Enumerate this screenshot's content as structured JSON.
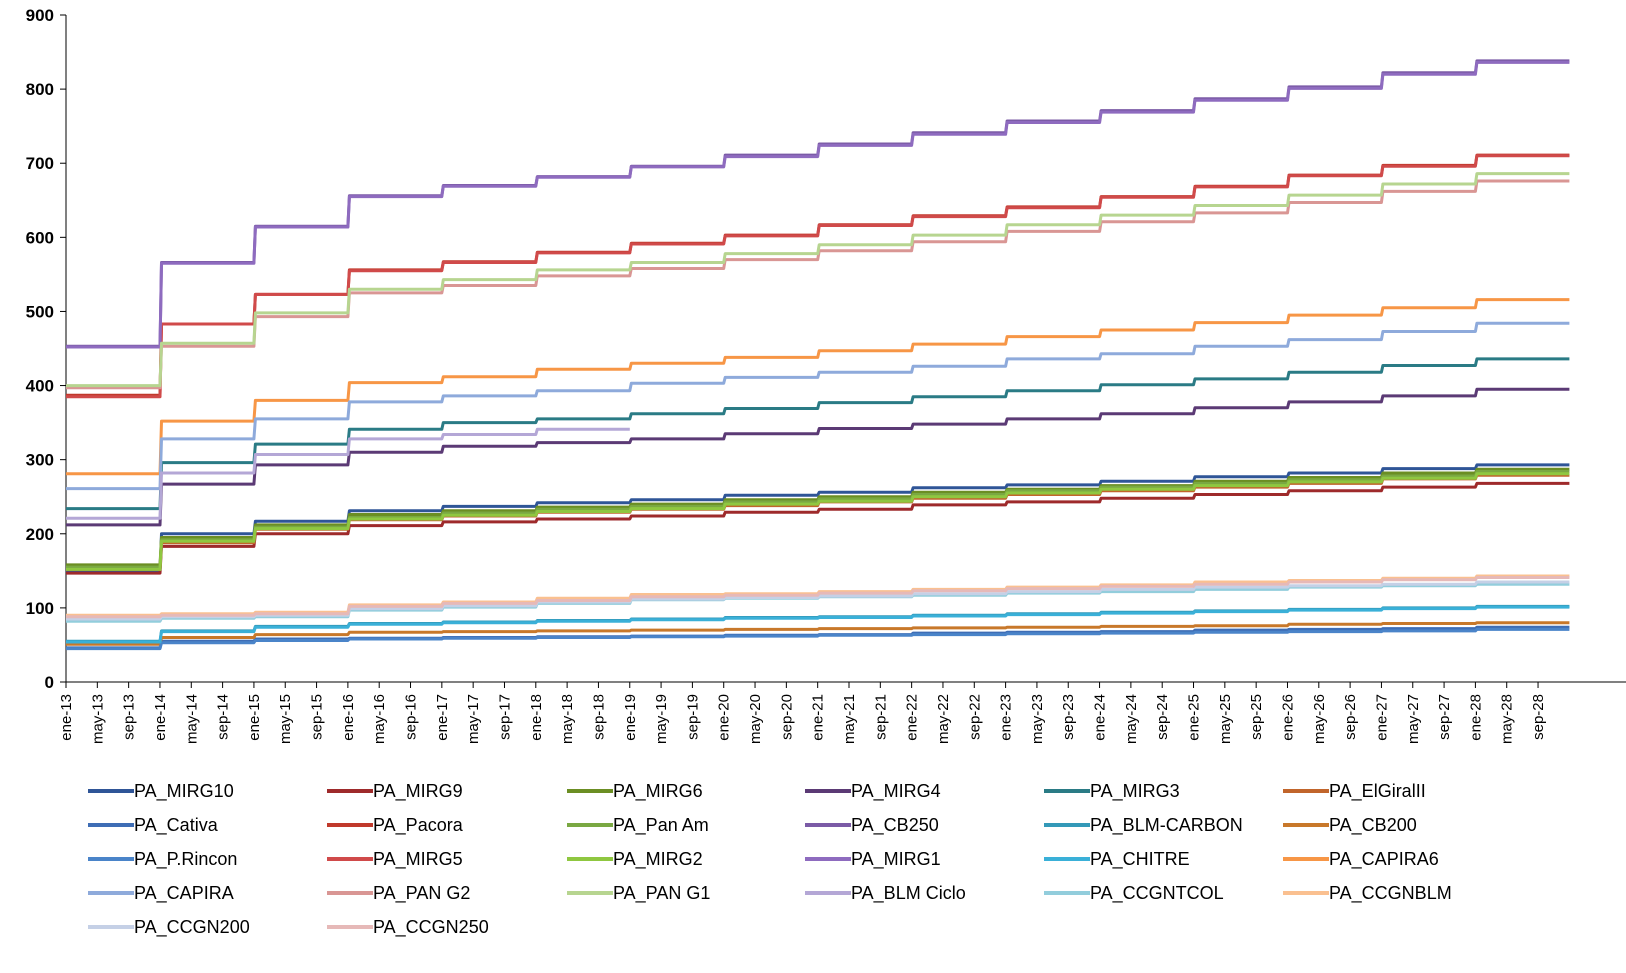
{
  "chart_data": {
    "type": "line",
    "title": "",
    "xlabel": "",
    "ylabel": "",
    "ylim": [
      0,
      900
    ],
    "yticks": [
      0,
      100,
      200,
      300,
      400,
      500,
      600,
      700,
      800,
      900
    ],
    "x_tick_labels": [
      "ene-13",
      "may-13",
      "sep-13",
      "ene-14",
      "may-14",
      "sep-14",
      "ene-15",
      "may-15",
      "sep-15",
      "ene-16",
      "may-16",
      "sep-16",
      "ene-17",
      "may-17",
      "sep-17",
      "ene-18",
      "may-18",
      "sep-18",
      "ene-19",
      "may-19",
      "sep-19",
      "ene-20",
      "may-20",
      "sep-20",
      "ene-21",
      "may-21",
      "sep-21",
      "ene-22",
      "may-22",
      "sep-22",
      "ene-23",
      "may-23",
      "sep-23",
      "ene-24",
      "may-24",
      "sep-24",
      "ene-25",
      "may-25",
      "sep-25",
      "ene-26",
      "may-26",
      "sep-26",
      "ene-27",
      "may-27",
      "sep-27",
      "ene-28",
      "may-28",
      "sep-28"
    ],
    "x_step": "monthly, ticks every 4 months",
    "years": [
      2013,
      2014,
      2015,
      2016,
      2017,
      2018,
      2019,
      2020,
      2021,
      2022,
      2023,
      2024,
      2025,
      2026,
      2027,
      2028
    ],
    "grid": false,
    "legend_position": "bottom",
    "series": [
      {
        "name": "PA_MIRG10",
        "color": "#2f5597",
        "values": [
          149,
          200,
          217,
          231,
          237,
          242,
          246,
          252,
          256,
          262,
          266,
          271,
          277,
          282,
          288,
          293
        ]
      },
      {
        "name": "PA_MIRG9",
        "color": "#9e2a2b",
        "values": [
          147,
          183,
          200,
          211,
          216,
          220,
          224,
          229,
          233,
          239,
          243,
          248,
          253,
          258,
          263,
          268
        ]
      },
      {
        "name": "PA_MIRG6",
        "color": "#6b8e23",
        "values": [
          158,
          195,
          212,
          226,
          231,
          236,
          240,
          246,
          250,
          256,
          260,
          265,
          271,
          276,
          282,
          287
        ]
      },
      {
        "name": "PA_MIRG4",
        "color": "#5b3a75",
        "values": [
          212,
          267,
          293,
          310,
          318,
          323,
          328,
          335,
          342,
          348,
          355,
          362,
          370,
          378,
          386,
          395
        ]
      },
      {
        "name": "PA_MIRG3",
        "color": "#2a7b85",
        "values": [
          234,
          296,
          321,
          341,
          350,
          355,
          362,
          369,
          377,
          385,
          393,
          401,
          409,
          418,
          427,
          436
        ]
      },
      {
        "name": "PA_ElGiralII",
        "color": "#c1652b",
        "values": [
          152,
          188,
          206,
          219,
          224,
          229,
          233,
          238,
          243,
          248,
          253,
          258,
          263,
          268,
          274,
          279
        ]
      },
      {
        "name": "PA_Cativa",
        "color": "#3e6db5",
        "values": [
          46,
          55,
          58,
          59,
          60,
          61,
          62,
          63,
          64,
          66,
          67,
          68,
          70,
          71,
          72,
          74
        ]
      },
      {
        "name": "PA_Pacora",
        "color": "#c0392b",
        "values": [
          387,
          483,
          523,
          556,
          567,
          580,
          592,
          603,
          617,
          629,
          641,
          655,
          669,
          684,
          697,
          711
        ]
      },
      {
        "name": "PA_Pan Am",
        "color": "#7aa842",
        "values": [
          155,
          192,
          209,
          222,
          228,
          233,
          237,
          243,
          247,
          253,
          258,
          263,
          268,
          273,
          278,
          284
        ]
      },
      {
        "name": "PA_CB250",
        "color": "#7b5ba6",
        "values": [
          453,
          566,
          615,
          656,
          670,
          682,
          696,
          711,
          726,
          741,
          757,
          771,
          787,
          803,
          822,
          838
        ]
      },
      {
        "name": "PA_BLM-CARBON",
        "color": "#3399b8",
        "values": [
          55,
          69,
          75,
          79,
          81,
          83,
          85,
          87,
          88,
          90,
          92,
          94,
          96,
          98,
          100,
          102
        ]
      },
      {
        "name": "PA_CB200",
        "color": "#c8782a",
        "values": [
          51,
          60,
          64,
          67,
          68,
          69,
          70,
          71,
          72,
          73,
          74,
          75,
          76,
          78,
          79,
          80
        ]
      },
      {
        "name": "PA_P.Rincon",
        "color": "#4a84c9",
        "values": [
          45,
          53,
          56,
          58,
          59,
          60,
          61,
          62,
          63,
          64,
          65,
          66,
          67,
          68,
          69,
          71
        ]
      },
      {
        "name": "PA_MIRG5",
        "color": "#d04a4a",
        "values": [
          385,
          483,
          523,
          555,
          566,
          579,
          591,
          602,
          616,
          628,
          640,
          654,
          668,
          683,
          696,
          710
        ]
      },
      {
        "name": "PA_MIRG2",
        "color": "#8fc740",
        "values": [
          152,
          190,
          207,
          220,
          225,
          230,
          234,
          240,
          244,
          250,
          255,
          260,
          265,
          270,
          275,
          281
        ]
      },
      {
        "name": "PA_MIRG1",
        "color": "#8e6bbf",
        "values": [
          452,
          565,
          614,
          655,
          669,
          681,
          695,
          709,
          724,
          739,
          755,
          769,
          785,
          801,
          820,
          836
        ]
      },
      {
        "name": "PA_CHITRE",
        "color": "#3ab0d8",
        "values": [
          54,
          68,
          74,
          78,
          80,
          82,
          84,
          86,
          87,
          89,
          91,
          93,
          95,
          97,
          99,
          101
        ]
      },
      {
        "name": "PA_CAPIRA6",
        "color": "#f79646",
        "values": [
          281,
          352,
          380,
          404,
          412,
          422,
          430,
          438,
          447,
          456,
          466,
          475,
          485,
          495,
          505,
          516
        ]
      },
      {
        "name": "PA_CAPIRA",
        "color": "#8eaadb",
        "values": [
          261,
          328,
          355,
          378,
          386,
          393,
          403,
          411,
          418,
          426,
          436,
          443,
          453,
          462,
          473,
          484
        ]
      },
      {
        "name": "PA_PAN G2",
        "color": "#d99694",
        "values": [
          397,
          453,
          493,
          525,
          535,
          548,
          558,
          570,
          582,
          594,
          608,
          621,
          633,
          647,
          662,
          676
        ]
      },
      {
        "name": "PA_PAN G1",
        "color": "#b7d590",
        "values": [
          400,
          457,
          498,
          530,
          543,
          556,
          566,
          578,
          590,
          603,
          617,
          630,
          643,
          657,
          672,
          686
        ]
      },
      {
        "name": "PA_BLM Ciclo",
        "color": "#b4a7d6",
        "values": [
          221,
          282,
          307,
          328,
          334,
          341,
          null,
          null,
          null,
          null,
          null,
          null,
          null,
          null,
          null,
          null
        ]
      },
      {
        "name": "PA_CCGNTCOL",
        "color": "#92cddc",
        "values": [
          82,
          86,
          88,
          97,
          101,
          106,
          111,
          113,
          115,
          117,
          120,
          122,
          125,
          128,
          130,
          132
        ]
      },
      {
        "name": "PA_CCGNBLM",
        "color": "#fac090",
        "values": [
          90,
          92,
          94,
          104,
          108,
          113,
          118,
          119,
          122,
          125,
          128,
          131,
          135,
          137,
          140,
          143
        ]
      },
      {
        "name": "PA_CCGN200",
        "color": "#c5d0e6",
        "values": [
          85,
          88,
          90,
          99,
          103,
          108,
          112,
          114,
          116,
          119,
          122,
          125,
          128,
          130,
          132,
          135
        ]
      },
      {
        "name": "PA_CCGN250",
        "color": "#e6b9b8",
        "values": [
          88,
          90,
          92,
          102,
          106,
          110,
          115,
          117,
          120,
          123,
          126,
          129,
          132,
          135,
          138,
          141
        ]
      }
    ]
  }
}
